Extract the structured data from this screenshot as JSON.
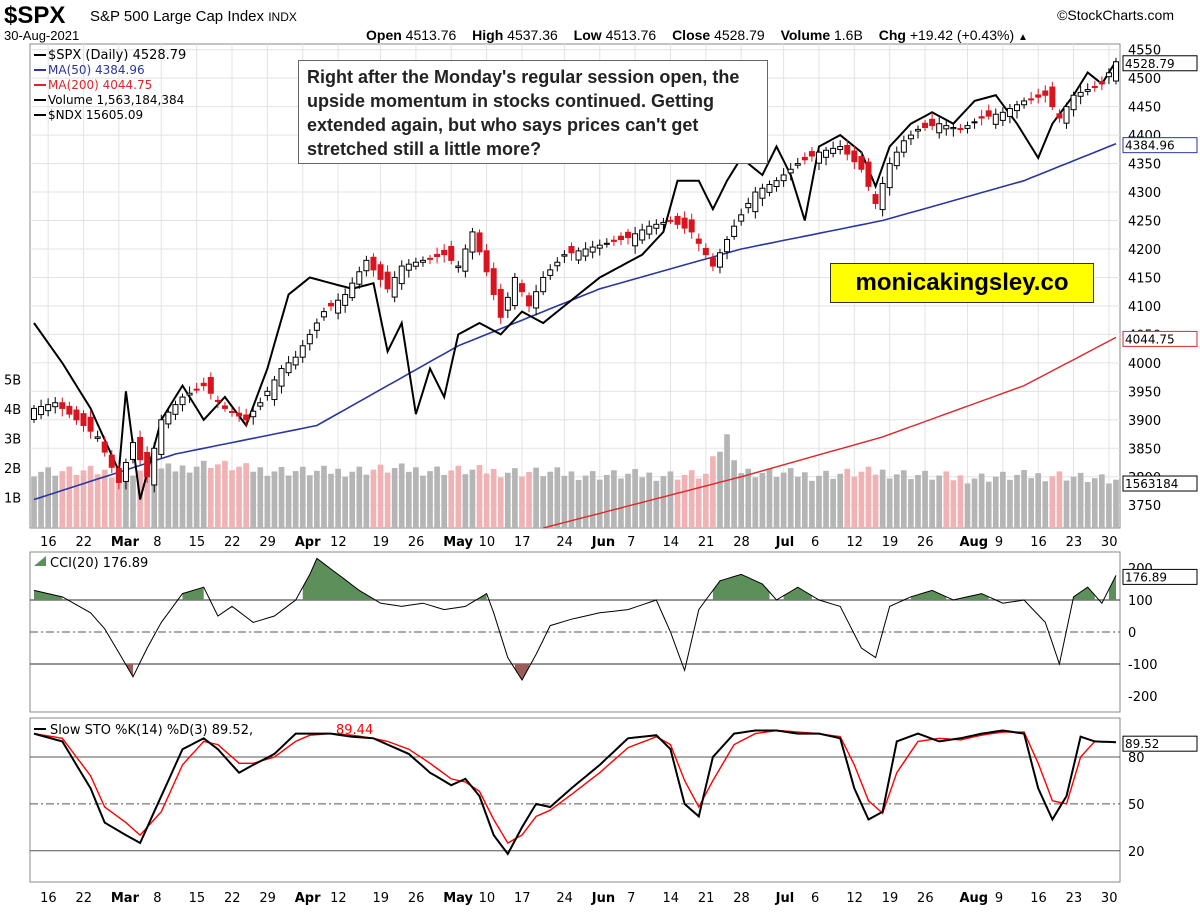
{
  "header": {
    "symbol": "$SPX",
    "name": "S&P 500 Large Cap Index",
    "exchange": "INDX",
    "source": "©StockCharts.com",
    "date": "30-Aug-2021",
    "open_label": "Open",
    "open": "4513.76",
    "high_label": "High",
    "high": "4537.36",
    "low_label": "Low",
    "low": "4513.76",
    "close_label": "Close",
    "close": "4528.79",
    "volume_label": "Volume",
    "volume": "1.6B",
    "chg_label": "Chg",
    "chg": "+19.42 (+0.43%)",
    "chg_arrow": "▲"
  },
  "annotation": "Right after the Monday's regular session open, the upside momentum in stocks continued. Getting extended again, but who says prices can't get stretched still a little more?",
  "brand": "monicakingsley.co",
  "colors": {
    "up": "#000000",
    "down": "#d8141e",
    "ma50": "#2a36a0",
    "ma200": "#e0252a",
    "ndx": "#000000",
    "cci_pos": "#5d8f5a",
    "cci_neg": "#9b5d5a",
    "sto_d": "#ff0000"
  },
  "chart_data": [
    {
      "type": "candlestick",
      "legend": [
        "$SPX (Daily) 4528.79",
        "MA(50) 4384.96",
        "MA(200) 4044.75",
        "Volume 1,563,184,384",
        "$NDX 15605.09"
      ],
      "price_ticks": [
        3750,
        3800,
        3850,
        3900,
        3950,
        4000,
        4050,
        4100,
        4150,
        4200,
        4250,
        4300,
        4350,
        4400,
        4450,
        4500,
        4550
      ],
      "price_tick_labels": [
        "3750",
        "3800",
        "3850",
        "3900",
        "3950",
        "4000",
        "4050",
        "4100",
        "4150",
        "4200",
        "4250",
        "4300",
        "4350",
        "4400",
        "4450",
        "4500",
        "4550"
      ],
      "ylim": [
        3710,
        4560
      ],
      "volume_ticks": [
        "1B",
        "2B",
        "3B",
        "4B",
        "5B"
      ],
      "volume_tick_values": [
        1,
        2,
        3,
        4,
        5
      ],
      "x_labels": [
        "16",
        "22",
        "Mar",
        "8",
        "15",
        "22",
        "29",
        "Apr",
        "12",
        "19",
        "26",
        "May",
        "10",
        "17",
        "24",
        "Jun",
        "7",
        "14",
        "21",
        "28",
        "Jul",
        "6",
        "12",
        "19",
        "26",
        "Aug",
        "9",
        "16",
        "23",
        "30"
      ],
      "last_labels": {
        "price": "4528.79",
        "ma50": "4384.96",
        "ma200": "4044.75",
        "volume": "1563184"
      },
      "anchors_close": [
        [
          0,
          3920
        ],
        [
          3,
          3930
        ],
        [
          6,
          3900
        ],
        [
          9,
          3870
        ],
        [
          12,
          3790
        ],
        [
          14,
          3860
        ],
        [
          16,
          3800
        ],
        [
          18,
          3900
        ],
        [
          21,
          3940
        ],
        [
          24,
          3960
        ],
        [
          27,
          3920
        ],
        [
          30,
          3900
        ],
        [
          32,
          3930
        ],
        [
          35,
          3990
        ],
        [
          37,
          4010
        ],
        [
          39,
          4050
        ],
        [
          41,
          4090
        ],
        [
          44,
          4120
        ],
        [
          47,
          4180
        ],
        [
          50,
          4130
        ],
        [
          52,
          4170
        ],
        [
          55,
          4180
        ],
        [
          58,
          4190
        ],
        [
          60,
          4170
        ],
        [
          62,
          4230
        ],
        [
          64,
          4160
        ],
        [
          66,
          4080
        ],
        [
          68,
          4150
        ],
        [
          70,
          4100
        ],
        [
          72,
          4150
        ],
        [
          75,
          4190
        ],
        [
          78,
          4200
        ],
        [
          81,
          4210
        ],
        [
          84,
          4220
        ],
        [
          87,
          4240
        ],
        [
          90,
          4250
        ],
        [
          93,
          4230
        ],
        [
          96,
          4170
        ],
        [
          99,
          4240
        ],
        [
          102,
          4300
        ],
        [
          105,
          4320
        ],
        [
          108,
          4350
        ],
        [
          111,
          4370
        ],
        [
          114,
          4380
        ],
        [
          117,
          4340
        ],
        [
          119,
          4280
        ],
        [
          121,
          4350
        ],
        [
          123,
          4390
        ],
        [
          125,
          4410
        ],
        [
          128,
          4420
        ],
        [
          131,
          4410
        ],
        [
          134,
          4430
        ],
        [
          137,
          4440
        ],
        [
          140,
          4460
        ],
        [
          143,
          4470
        ],
        [
          145,
          4430
        ],
        [
          147,
          4470
        ],
        [
          149,
          4480
        ],
        [
          151,
          4490
        ],
        [
          153,
          4528.79
        ]
      ],
      "ma50_anchors": [
        [
          0,
          3760
        ],
        [
          20,
          3840
        ],
        [
          40,
          3890
        ],
        [
          60,
          4030
        ],
        [
          80,
          4130
        ],
        [
          100,
          4200
        ],
        [
          120,
          4250
        ],
        [
          140,
          4320
        ],
        [
          153,
          4384.96
        ]
      ],
      "ma200_anchors": [
        [
          72,
          3710
        ],
        [
          100,
          3800
        ],
        [
          120,
          3870
        ],
        [
          140,
          3960
        ],
        [
          153,
          4044.75
        ]
      ],
      "ndx_anchors": [
        [
          0,
          4070
        ],
        [
          4,
          4000
        ],
        [
          8,
          3920
        ],
        [
          12,
          3810
        ],
        [
          13,
          3950
        ],
        [
          15,
          3760
        ],
        [
          18,
          3900
        ],
        [
          21,
          3960
        ],
        [
          24,
          3900
        ],
        [
          27,
          3940
        ],
        [
          30,
          3890
        ],
        [
          33,
          3990
        ],
        [
          36,
          4120
        ],
        [
          39,
          4150
        ],
        [
          42,
          4140
        ],
        [
          45,
          4130
        ],
        [
          48,
          4140
        ],
        [
          50,
          4020
        ],
        [
          52,
          4070
        ],
        [
          54,
          3910
        ],
        [
          56,
          3990
        ],
        [
          58,
          3940
        ],
        [
          60,
          4050
        ],
        [
          63,
          4070
        ],
        [
          66,
          4050
        ],
        [
          69,
          4090
        ],
        [
          72,
          4070
        ],
        [
          75,
          4100
        ],
        [
          77,
          4120
        ],
        [
          80,
          4150
        ],
        [
          83,
          4170
        ],
        [
          86,
          4190
        ],
        [
          89,
          4230
        ],
        [
          91,
          4320
        ],
        [
          94,
          4320
        ],
        [
          96,
          4270
        ],
        [
          98,
          4320
        ],
        [
          100,
          4360
        ],
        [
          103,
          4330
        ],
        [
          105,
          4380
        ],
        [
          107,
          4330
        ],
        [
          109,
          4250
        ],
        [
          111,
          4380
        ],
        [
          114,
          4400
        ],
        [
          117,
          4370
        ],
        [
          119,
          4310
        ],
        [
          121,
          4380
        ],
        [
          124,
          4420
        ],
        [
          127,
          4440
        ],
        [
          130,
          4420
        ],
        [
          133,
          4460
        ],
        [
          136,
          4470
        ],
        [
          139,
          4420
        ],
        [
          142,
          4360
        ],
        [
          144,
          4420
        ],
        [
          147,
          4470
        ],
        [
          149,
          4510
        ],
        [
          151,
          4490
        ],
        [
          153,
          4530
        ]
      ],
      "volume_anchors": [
        [
          0,
          1.95
        ],
        [
          10,
          1.9
        ],
        [
          20,
          2.0
        ],
        [
          25,
          2.2
        ],
        [
          30,
          2.0
        ],
        [
          40,
          1.9
        ],
        [
          50,
          2.0
        ],
        [
          70,
          1.9
        ],
        [
          80,
          1.8
        ],
        [
          95,
          1.8
        ],
        [
          98,
          3.1
        ],
        [
          100,
          1.9
        ],
        [
          110,
          1.8
        ],
        [
          120,
          1.9
        ],
        [
          130,
          1.7
        ],
        [
          145,
          1.8
        ],
        [
          153,
          1.56
        ]
      ]
    },
    {
      "type": "line",
      "legend": "CCI(20) 176.89",
      "ticks": [
        -200,
        -100,
        0,
        100,
        200
      ],
      "tick_labels": [
        "-200",
        "-100",
        "0",
        "100",
        "200"
      ],
      "ylim": [
        -250,
        250
      ],
      "last_label": "176.89",
      "anchors": [
        [
          0,
          130
        ],
        [
          4,
          110
        ],
        [
          8,
          60
        ],
        [
          10,
          10
        ],
        [
          14,
          -140
        ],
        [
          16,
          -50
        ],
        [
          18,
          30
        ],
        [
          21,
          120
        ],
        [
          24,
          140
        ],
        [
          26,
          50
        ],
        [
          28,
          80
        ],
        [
          31,
          30
        ],
        [
          34,
          50
        ],
        [
          37,
          100
        ],
        [
          39,
          180
        ],
        [
          40,
          230
        ],
        [
          43,
          180
        ],
        [
          46,
          130
        ],
        [
          49,
          90
        ],
        [
          52,
          80
        ],
        [
          55,
          90
        ],
        [
          58,
          70
        ],
        [
          61,
          80
        ],
        [
          64,
          120
        ],
        [
          65,
          60
        ],
        [
          67,
          -80
        ],
        [
          69,
          -150
        ],
        [
          71,
          -70
        ],
        [
          73,
          20
        ],
        [
          76,
          40
        ],
        [
          80,
          60
        ],
        [
          84,
          70
        ],
        [
          88,
          100
        ],
        [
          90,
          0
        ],
        [
          92,
          -120
        ],
        [
          94,
          70
        ],
        [
          97,
          160
        ],
        [
          100,
          180
        ],
        [
          103,
          150
        ],
        [
          105,
          100
        ],
        [
          108,
          140
        ],
        [
          111,
          100
        ],
        [
          114,
          80
        ],
        [
          117,
          -50
        ],
        [
          119,
          -80
        ],
        [
          121,
          80
        ],
        [
          124,
          110
        ],
        [
          127,
          130
        ],
        [
          130,
          100
        ],
        [
          134,
          120
        ],
        [
          137,
          90
        ],
        [
          140,
          100
        ],
        [
          143,
          30
        ],
        [
          145,
          -100
        ],
        [
          147,
          110
        ],
        [
          149,
          140
        ],
        [
          151,
          90
        ],
        [
          153,
          176.89
        ]
      ]
    },
    {
      "type": "line",
      "legend": "Slow STO %K(14) %D(3) 89.52,",
      "legend_d": "89.44",
      "ticks": [
        20,
        50,
        80
      ],
      "tick_labels": [
        "20",
        "50",
        "80"
      ],
      "ylim": [
        0,
        105
      ],
      "last_label": "89.52",
      "k_anchors": [
        [
          0,
          95
        ],
        [
          4,
          90
        ],
        [
          8,
          60
        ],
        [
          10,
          38
        ],
        [
          13,
          30
        ],
        [
          15,
          25
        ],
        [
          18,
          55
        ],
        [
          21,
          85
        ],
        [
          24,
          92
        ],
        [
          26,
          85
        ],
        [
          29,
          70
        ],
        [
          31,
          75
        ],
        [
          34,
          82
        ],
        [
          37,
          95
        ],
        [
          39,
          95
        ],
        [
          42,
          95
        ],
        [
          45,
          93
        ],
        [
          48,
          92
        ],
        [
          50,
          88
        ],
        [
          53,
          82
        ],
        [
          56,
          70
        ],
        [
          59,
          62
        ],
        [
          61,
          66
        ],
        [
          63,
          55
        ],
        [
          65,
          30
        ],
        [
          67,
          18
        ],
        [
          69,
          35
        ],
        [
          71,
          50
        ],
        [
          73,
          48
        ],
        [
          76,
          60
        ],
        [
          80,
          75
        ],
        [
          84,
          92
        ],
        [
          88,
          94
        ],
        [
          90,
          85
        ],
        [
          92,
          50
        ],
        [
          94,
          42
        ],
        [
          96,
          80
        ],
        [
          99,
          95
        ],
        [
          102,
          97
        ],
        [
          105,
          97
        ],
        [
          108,
          95
        ],
        [
          111,
          95
        ],
        [
          114,
          92
        ],
        [
          116,
          60
        ],
        [
          118,
          40
        ],
        [
          120,
          45
        ],
        [
          122,
          90
        ],
        [
          125,
          95
        ],
        [
          128,
          90
        ],
        [
          131,
          92
        ],
        [
          134,
          95
        ],
        [
          137,
          97
        ],
        [
          140,
          95
        ],
        [
          142,
          60
        ],
        [
          144,
          40
        ],
        [
          146,
          55
        ],
        [
          148,
          93
        ],
        [
          150,
          90
        ],
        [
          153,
          89.52
        ]
      ],
      "d_anchors": [
        [
          0,
          95
        ],
        [
          4,
          92
        ],
        [
          8,
          68
        ],
        [
          10,
          48
        ],
        [
          13,
          38
        ],
        [
          15,
          30
        ],
        [
          18,
          45
        ],
        [
          21,
          75
        ],
        [
          24,
          90
        ],
        [
          26,
          88
        ],
        [
          29,
          76
        ],
        [
          31,
          76
        ],
        [
          34,
          80
        ],
        [
          37,
          90
        ],
        [
          39,
          94
        ],
        [
          42,
          95
        ],
        [
          45,
          94
        ],
        [
          48,
          92
        ],
        [
          50,
          90
        ],
        [
          53,
          85
        ],
        [
          56,
          76
        ],
        [
          59,
          66
        ],
        [
          61,
          64
        ],
        [
          63,
          58
        ],
        [
          65,
          40
        ],
        [
          67,
          25
        ],
        [
          69,
          30
        ],
        [
          71,
          42
        ],
        [
          73,
          46
        ],
        [
          76,
          56
        ],
        [
          80,
          70
        ],
        [
          84,
          86
        ],
        [
          88,
          93
        ],
        [
          90,
          88
        ],
        [
          92,
          65
        ],
        [
          94,
          48
        ],
        [
          96,
          65
        ],
        [
          99,
          88
        ],
        [
          102,
          95
        ],
        [
          105,
          97
        ],
        [
          108,
          96
        ],
        [
          111,
          95
        ],
        [
          114,
          93
        ],
        [
          116,
          75
        ],
        [
          118,
          52
        ],
        [
          120,
          44
        ],
        [
          122,
          70
        ],
        [
          125,
          90
        ],
        [
          128,
          92
        ],
        [
          131,
          91
        ],
        [
          134,
          94
        ],
        [
          137,
          96
        ],
        [
          140,
          96
        ],
        [
          142,
          76
        ],
        [
          144,
          52
        ],
        [
          146,
          50
        ],
        [
          148,
          80
        ],
        [
          150,
          90
        ],
        [
          153,
          89.44
        ]
      ]
    }
  ]
}
